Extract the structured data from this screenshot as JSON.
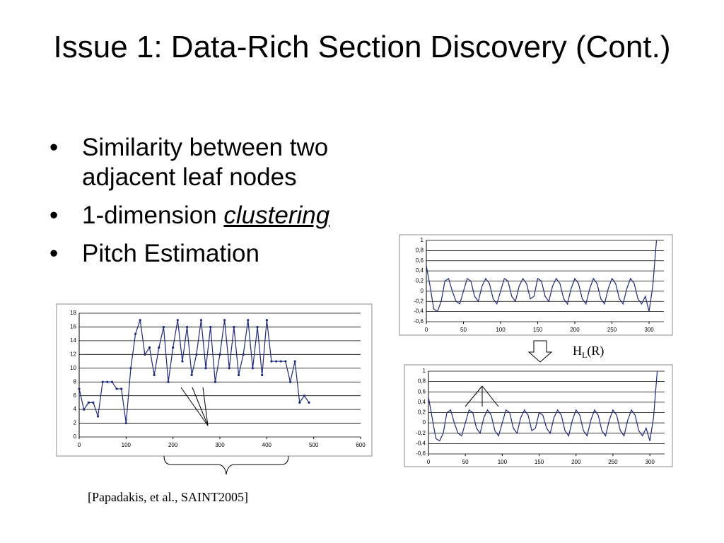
{
  "slide": {
    "title": "Issue 1: Data-Rich Section Discovery (Cont.)",
    "bullets": [
      "Similarity between two adjacent leaf nodes",
      [
        "1-dimension ",
        "clustering"
      ],
      "Pitch Estimation"
    ],
    "annotation": [
      "H",
      "L",
      "(R)"
    ],
    "citation": "[Papadakis, et al., SAINT2005]"
  },
  "chart_data": [
    {
      "type": "line",
      "markers": true,
      "color": "#1f2a7a",
      "x": [
        0,
        10,
        20,
        30,
        40,
        50,
        60,
        70,
        80,
        90,
        100,
        110,
        120,
        130,
        140,
        150,
        160,
        170,
        180,
        190,
        200,
        210,
        220,
        230,
        240,
        250,
        260,
        270,
        280,
        290,
        300,
        310,
        320,
        330,
        340,
        350,
        360,
        370,
        380,
        390,
        400,
        410,
        420,
        430,
        440,
        450,
        460,
        470,
        480,
        490
      ],
      "series": [
        {
          "values": [
            7,
            4,
            5,
            5,
            3,
            8,
            8,
            8,
            7,
            7,
            2,
            10,
            15,
            17,
            12,
            13,
            9,
            13,
            16,
            8,
            13,
            17,
            11,
            16,
            9,
            12,
            17,
            10,
            16,
            8,
            12,
            17,
            10,
            16,
            9,
            12,
            17,
            10,
            16,
            9,
            17,
            11,
            11,
            11,
            11,
            8,
            11,
            5,
            6,
            5
          ]
        }
      ],
      "xlim": [
        0,
        600
      ],
      "xticks": [
        0,
        100,
        200,
        300,
        400,
        500,
        600
      ],
      "ylim": [
        0,
        18
      ],
      "yticks": [
        0,
        2,
        4,
        6,
        8,
        10,
        12,
        14,
        16,
        18
      ],
      "grid": true
    },
    {
      "type": "line",
      "markers": false,
      "color": "#1f2a7a",
      "x": [
        0,
        5,
        10,
        15,
        20,
        25,
        30,
        35,
        40,
        45,
        50,
        55,
        60,
        65,
        70,
        75,
        80,
        85,
        90,
        95,
        100,
        105,
        110,
        115,
        120,
        125,
        130,
        135,
        140,
        145,
        150,
        155,
        160,
        165,
        170,
        175,
        180,
        185,
        190,
        195,
        200,
        205,
        210,
        215,
        220,
        225,
        230,
        235,
        240,
        245,
        250,
        255,
        260,
        265,
        270,
        275,
        280,
        285,
        290,
        295,
        300,
        305,
        310
      ],
      "series": [
        {
          "values": [
            0.5,
            0.1,
            -0.35,
            -0.4,
            -0.2,
            0.2,
            0.25,
            0,
            -0.2,
            -0.25,
            0,
            0.25,
            0.2,
            -0.1,
            -0.2,
            0.1,
            0.25,
            0.15,
            -0.15,
            -0.25,
            0,
            0.25,
            0.2,
            -0.1,
            -0.2,
            0.1,
            0.25,
            0.15,
            -0.15,
            -0.1,
            0.25,
            0.2,
            -0.1,
            -0.2,
            0.1,
            0.25,
            0.15,
            -0.15,
            -0.25,
            0.05,
            0.25,
            0.15,
            -0.15,
            -0.25,
            0.05,
            0.25,
            0.15,
            -0.15,
            -0.25,
            0.05,
            0.25,
            0.15,
            -0.15,
            -0.25,
            0.05,
            0.25,
            0.15,
            -0.15,
            -0.25,
            -0.1,
            -0.4,
            0.1,
            1
          ]
        }
      ],
      "xlim": [
        0,
        320
      ],
      "xticks": [
        0,
        50,
        100,
        150,
        200,
        250,
        300
      ],
      "ylim": [
        -0.6,
        1
      ],
      "yticks": [
        {
          "value": -0.6,
          "label": "-0,6"
        },
        {
          "value": -0.4,
          "label": "-0,4"
        },
        {
          "value": -0.2,
          "label": "-0,2"
        },
        0,
        {
          "value": 0.2,
          "label": "0,2"
        },
        {
          "value": 0.4,
          "label": "0,4"
        },
        {
          "value": 0.6,
          "label": "0,6"
        },
        {
          "value": 0.8,
          "label": "0,8"
        },
        1
      ],
      "grid": true
    },
    {
      "type": "line",
      "markers": false,
      "color": "#1f2a7a",
      "x": [
        0,
        5,
        10,
        15,
        20,
        25,
        30,
        35,
        40,
        45,
        50,
        55,
        60,
        65,
        70,
        75,
        80,
        85,
        90,
        95,
        100,
        105,
        110,
        115,
        120,
        125,
        130,
        135,
        140,
        145,
        150,
        155,
        160,
        165,
        170,
        175,
        180,
        185,
        190,
        195,
        200,
        205,
        210,
        215,
        220,
        225,
        230,
        235,
        240,
        245,
        250,
        255,
        260,
        265,
        270,
        275,
        280,
        285,
        290,
        295,
        300,
        305,
        310
      ],
      "series": [
        {
          "values": [
            0.5,
            0.1,
            -0.3,
            -0.35,
            -0.2,
            0.2,
            0.25,
            0,
            -0.2,
            -0.25,
            0,
            0.25,
            0.2,
            -0.1,
            -0.2,
            0.1,
            0.25,
            0.15,
            -0.15,
            -0.25,
            0,
            0.25,
            0.2,
            -0.1,
            -0.2,
            0.1,
            0.25,
            0.15,
            -0.15,
            -0.1,
            0.2,
            0.15,
            -0.1,
            -0.2,
            0.1,
            0.25,
            0.15,
            -0.15,
            -0.25,
            0.05,
            0.25,
            0.15,
            -0.15,
            -0.25,
            0.05,
            0.25,
            0.15,
            -0.15,
            -0.25,
            0.05,
            0.25,
            0.15,
            -0.15,
            -0.25,
            0.05,
            0.25,
            0.15,
            -0.15,
            -0.25,
            -0.1,
            -0.35,
            0.1,
            1
          ]
        }
      ],
      "xlim": [
        0,
        320
      ],
      "xticks": [
        0,
        50,
        100,
        150,
        200,
        250,
        300
      ],
      "ylim": [
        -0.6,
        1
      ],
      "yticks": [
        {
          "value": -0.6,
          "label": "-0,6"
        },
        {
          "value": -0.4,
          "label": "-0,4"
        },
        {
          "value": -0.2,
          "label": "-0,2"
        },
        0,
        {
          "value": 0.2,
          "label": "0,2"
        },
        {
          "value": 0.4,
          "label": "0,4"
        },
        {
          "value": 0.6,
          "label": "0,6"
        },
        {
          "value": 0.8,
          "label": "0,8"
        },
        1
      ],
      "grid": true
    }
  ]
}
